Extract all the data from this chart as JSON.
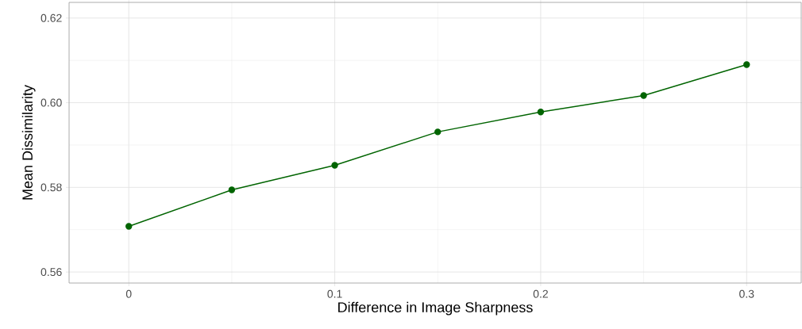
{
  "chart_data": {
    "type": "line",
    "xlabel": "Difference in Image Sharpness",
    "ylabel": "Mean Dissimilarity",
    "x": [
      0,
      0.05,
      0.1,
      0.15,
      0.2,
      0.25,
      0.3
    ],
    "series": [
      {
        "color": "#006400",
        "values": [
          0.5708,
          0.5794,
          0.5852,
          0.5931,
          0.5978,
          0.6017,
          0.609
        ]
      }
    ],
    "xlim": [
      -0.029,
      0.3265
    ],
    "ylim": [
      0.5574,
      0.6237
    ],
    "xticks": [
      0,
      0.1,
      0.2,
      0.3
    ],
    "yticks": [
      0.56,
      0.58,
      {
        "value": 0.6,
        "label": "0.60"
      },
      0.62
    ],
    "grid": true,
    "marker": "circle",
    "line_style": "solid"
  }
}
